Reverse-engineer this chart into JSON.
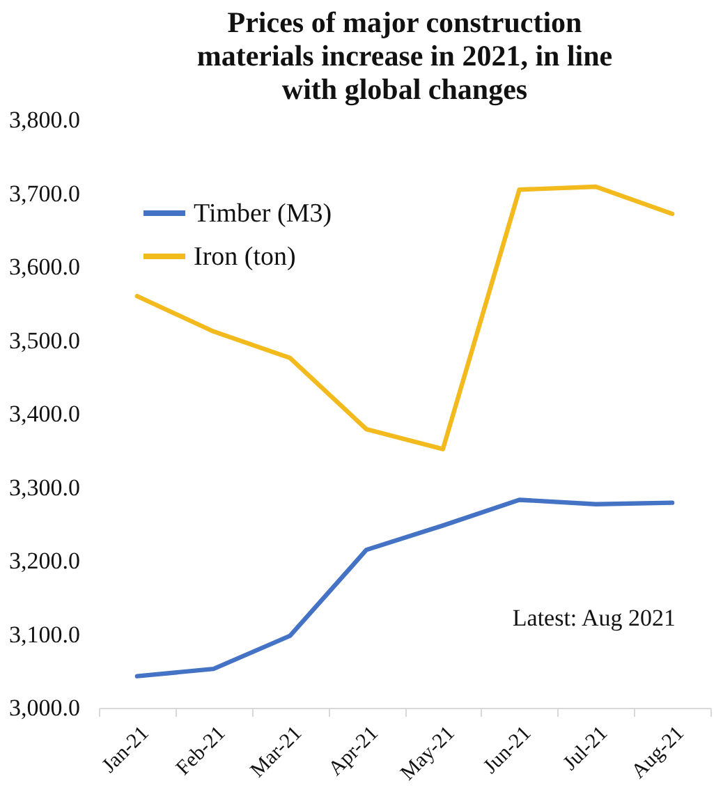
{
  "chart_data": {
    "type": "line",
    "title": [
      "Prices of major construction",
      "materials increase in 2021, in line",
      "with global changes"
    ],
    "categories": [
      "Jan-21",
      "Feb-21",
      "Mar-21",
      "Apr-21",
      "May-21",
      "Jun-21",
      "Jul-21",
      "Aug-21"
    ],
    "series": [
      {
        "name": "Timber (M3)",
        "color": "#4472c4",
        "values": [
          3043,
          3053,
          3098,
          3215,
          3248,
          3283,
          3277,
          3279
        ]
      },
      {
        "name": "Iron (ton)",
        "color": "#f2ba1d",
        "values": [
          3560,
          3512,
          3476,
          3379,
          3352,
          3705,
          3709,
          3672
        ]
      }
    ],
    "ylim": [
      3000,
      3800
    ],
    "yticks": [
      {
        "value": 3000,
        "label": "3,000.0"
      },
      {
        "value": 3100,
        "label": "3,100.0"
      },
      {
        "value": 3200,
        "label": "3,200.0"
      },
      {
        "value": 3300,
        "label": "3,300.0"
      },
      {
        "value": 3400,
        "label": "3,400.0"
      },
      {
        "value": 3500,
        "label": "3,500.0"
      },
      {
        "value": 3600,
        "label": "3,600.0"
      },
      {
        "value": 3700,
        "label": "3,700.0"
      },
      {
        "value": 3800,
        "label": "3,800.0"
      }
    ],
    "grid": false,
    "legend": "top left",
    "marker": "none",
    "line_style": "solid",
    "annotations": [
      "Latest: Aug 2021"
    ]
  }
}
